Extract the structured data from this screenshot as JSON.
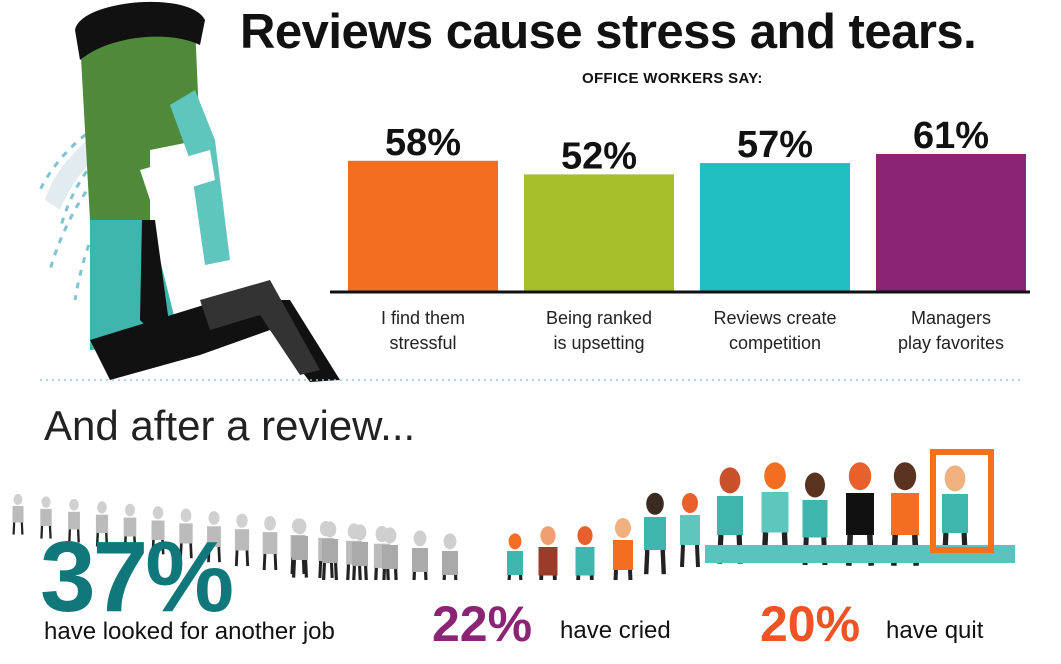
{
  "header": {
    "title": "Reviews cause stress and tears.",
    "subtitle": "OFFICE WORKERS SAY:"
  },
  "chart_data": {
    "type": "bar",
    "title": "Reviews cause stress and tears.",
    "subtitle": "OFFICE WORKERS SAY:",
    "categories": [
      "I find them stressful",
      "Being ranked is upsetting",
      "Reviews create competition",
      "Managers play favorites"
    ],
    "category_lines": [
      [
        "I find them",
        "stressful"
      ],
      [
        "Being ranked",
        "is upsetting"
      ],
      [
        "Reviews create",
        "competition"
      ],
      [
        "Managers",
        "play favorites"
      ]
    ],
    "values": [
      58,
      52,
      57,
      61
    ],
    "value_labels": [
      "58%",
      "52%",
      "57%",
      "61%"
    ],
    "colors": [
      "#f26f21",
      "#a6bf2b",
      "#21bfbf",
      "#8b2474"
    ],
    "ylim": [
      0,
      100
    ],
    "grid": false
  },
  "after": {
    "heading": "And after a review...",
    "stats": [
      {
        "value": "37%",
        "text": "have looked for another job",
        "color": "#10777a"
      },
      {
        "value": "22%",
        "text": "have cried",
        "color": "#8b2474"
      },
      {
        "value": "20%",
        "text": "have quit",
        "color": "#ef5323"
      }
    ]
  },
  "illustration": {
    "man_icon": "crying-man-icon",
    "crowd_icon": "people-line-icon",
    "door_icon": "exit-door-icon"
  }
}
